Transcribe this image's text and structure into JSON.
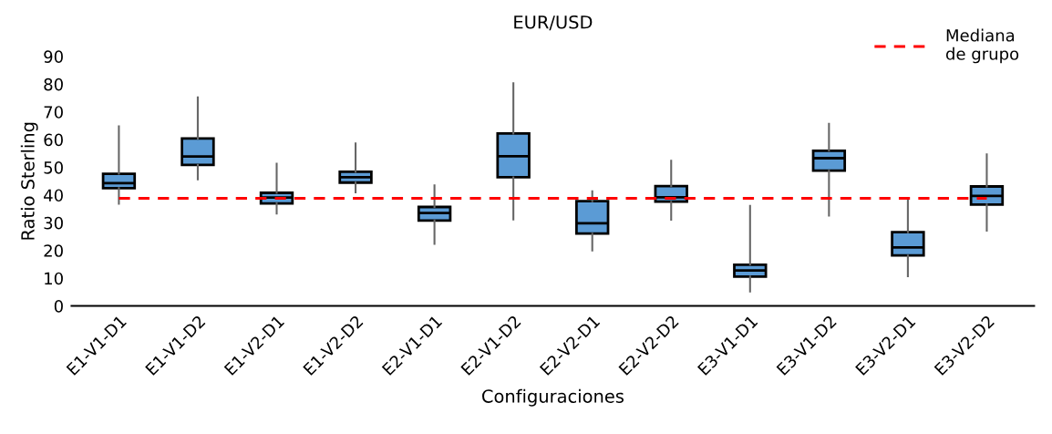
{
  "chart_data": {
    "type": "box",
    "title": "EUR/USD",
    "xlabel": "Configuraciones",
    "ylabel": "Ratio Sterling",
    "categories": [
      "E1-V1-D1",
      "E1-V1-D2",
      "E1-V2-D1",
      "E1-V2-D2",
      "E2-V1-D1",
      "E2-V1-D2",
      "E2-V2-D1",
      "E2-V2-D2",
      "E3-V1-D1",
      "E3-V1-D2",
      "E3-V2-D1",
      "E3-V2-D2"
    ],
    "boxes": [
      {
        "low": 36.9,
        "q1": 42.5,
        "median": 44.3,
        "q3": 47.7,
        "high": 64.8
      },
      {
        "low": 45.7,
        "q1": 50.9,
        "median": 53.9,
        "q3": 60.4,
        "high": 75.2
      },
      {
        "low": 33.3,
        "q1": 37.0,
        "median": 39.1,
        "q3": 40.8,
        "high": 51.3
      },
      {
        "low": 41.0,
        "q1": 44.5,
        "median": 46.4,
        "q3": 48.4,
        "high": 58.6
      },
      {
        "low": 22.4,
        "q1": 30.8,
        "median": 33.5,
        "q3": 35.7,
        "high": 43.5
      },
      {
        "low": 31.2,
        "q1": 46.4,
        "median": 54.0,
        "q3": 62.2,
        "high": 80.3
      },
      {
        "low": 20.0,
        "q1": 26.1,
        "median": 29.8,
        "q3": 37.8,
        "high": 41.4
      },
      {
        "low": 31.1,
        "q1": 37.6,
        "median": 39.2,
        "q3": 43.2,
        "high": 52.4
      },
      {
        "low": 5.2,
        "q1": 10.6,
        "median": 12.8,
        "q3": 14.9,
        "high": 36.1
      },
      {
        "low": 32.6,
        "q1": 48.8,
        "median": 53.3,
        "q3": 56.0,
        "high": 65.7
      },
      {
        "low": 10.7,
        "q1": 18.2,
        "median": 21.1,
        "q3": 26.6,
        "high": 38.3
      },
      {
        "low": 27.2,
        "q1": 36.6,
        "median": 39.7,
        "q3": 43.1,
        "high": 54.7
      }
    ],
    "color": "#5b9bd5",
    "ylim": [
      0,
      90
    ],
    "yticks": [
      0,
      10,
      20,
      30,
      40,
      50,
      60,
      70,
      80,
      90
    ],
    "ref_lines": [
      {
        "axis": "y",
        "value": 38.8,
        "label": "Mediana\nde grupo",
        "color": "#ff0000",
        "line_style": "dashed"
      }
    ],
    "grid": false,
    "legend": "top right"
  }
}
